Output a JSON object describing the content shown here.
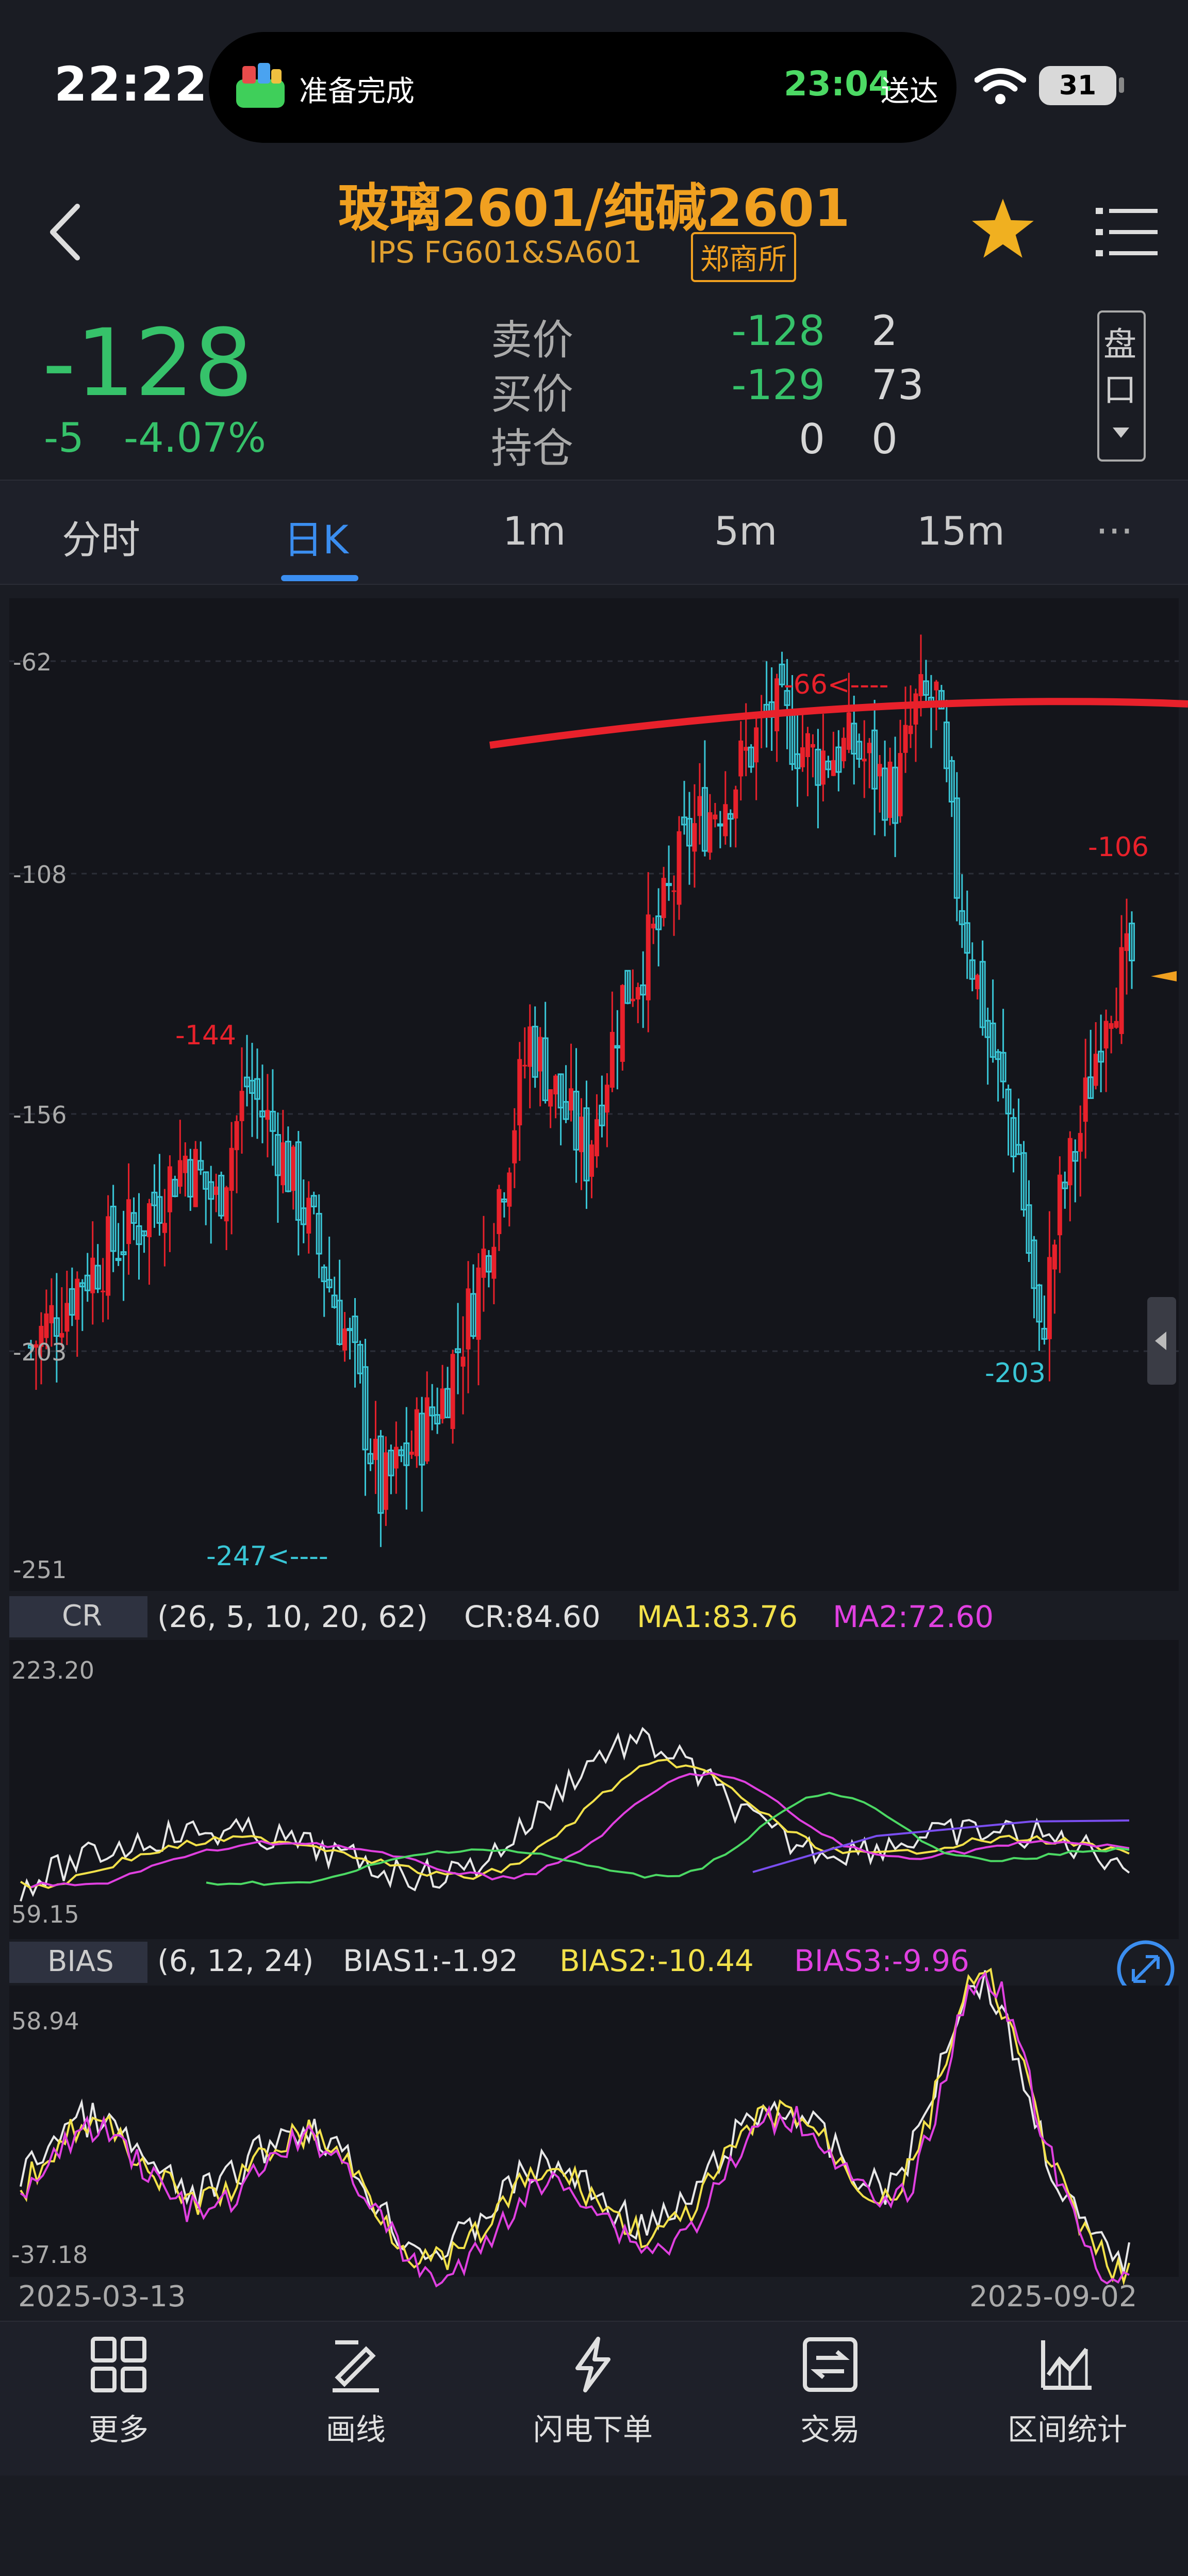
{
  "status": {
    "time": "22:22",
    "island_text": "准备完成",
    "island_time": "23:04",
    "island_suffix": "送达",
    "battery": "31"
  },
  "header": {
    "title": "玻璃2601/纯碱2601",
    "subtitle": "IPS FG601&SA601",
    "exchange": "郑商所"
  },
  "quote": {
    "last": "-128",
    "change": "-5",
    "change_pct": "-4.07%",
    "rows": [
      {
        "label": "卖价",
        "price": "-128",
        "vol": "2"
      },
      {
        "label": "买价",
        "price": "-129",
        "vol": "73"
      },
      {
        "label": "持仓",
        "price": "0",
        "vol": "0"
      }
    ],
    "pankou_label": "盘口"
  },
  "tabs": [
    {
      "label": "分时"
    },
    {
      "label": "日K"
    },
    {
      "label": "1m"
    },
    {
      "label": "5m"
    },
    {
      "label": "15m"
    }
  ],
  "tab_more": "···",
  "chart_data": {
    "type": "candlestick",
    "y_ticks": [
      "-62",
      "-108",
      "-156",
      "-203",
      "-251"
    ],
    "ylim": [
      -251,
      -62
    ],
    "x_start": "2025-03-13",
    "x_end": "2025-09-02",
    "annotations": {
      "high_left": "-144",
      "low_left": "-247<----",
      "high_mid": "-66<----",
      "high_right": "-106",
      "low_right": "-203"
    },
    "up_color": "#e8212b",
    "down_color": "#39c6d6",
    "cr": {
      "name": "CR",
      "params": "(26, 5, 10, 20, 62)",
      "value": "CR:84.60",
      "ma1": "MA1:83.76",
      "ma2": "MA2:72.60",
      "ymax": "223.20",
      "ymin": "59.15"
    },
    "bias": {
      "name": "BIAS",
      "params": "(6, 12, 24)",
      "b1": "BIAS1:-1.92",
      "b2": "BIAS2:-10.44",
      "b3": "BIAS3:-9.96",
      "ymax": "58.94",
      "ymin": "-37.18"
    }
  },
  "toolbar": [
    {
      "label": "更多",
      "icon": "grid-icon"
    },
    {
      "label": "画线",
      "icon": "draw-line-icon"
    },
    {
      "label": "闪电下单",
      "icon": "lightning-icon"
    },
    {
      "label": "交易",
      "icon": "trade-icon"
    },
    {
      "label": "区间统计",
      "icon": "stats-icon"
    }
  ]
}
